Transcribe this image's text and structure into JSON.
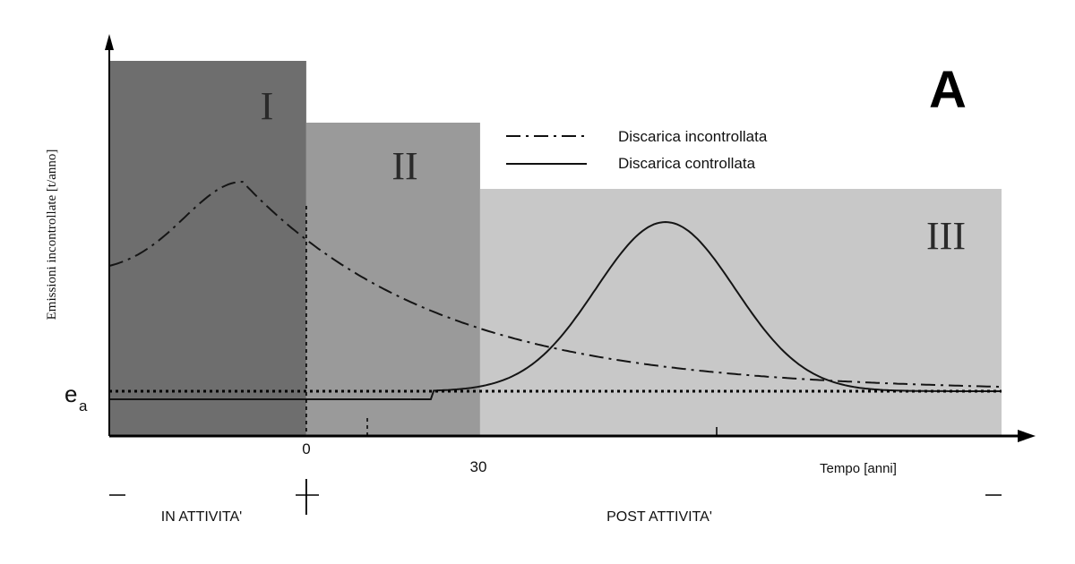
{
  "chart_data": {
    "type": "line",
    "panel_letter": "A",
    "ylabel": "Emissioni incontrollate [t/anno]",
    "xlabel": "Tempo [anni]",
    "x_ticks": [
      "0",
      "30"
    ],
    "x_range": [
      -34,
      120
    ],
    "threshold_label": "e",
    "threshold_subscript": "a",
    "regions": [
      {
        "label": "I",
        "x_start": -34,
        "x_end": 0,
        "color": "#6e6e6e"
      },
      {
        "label": "II",
        "x_start": 0,
        "x_end": 30,
        "color": "#9a9a9a"
      },
      {
        "label": "III",
        "x_start": 30,
        "x_end": 120,
        "color": "#c8c8c8"
      }
    ],
    "periods": [
      {
        "label": "IN ATTIVITA'"
      },
      {
        "label": "POST ATTIVITA'"
      }
    ],
    "legend": [
      {
        "label": "Discarica incontrollata",
        "style": "dash-dot"
      },
      {
        "label": "Discarica controllata",
        "style": "solid"
      }
    ],
    "series": [
      {
        "name": "Discarica incontrollata",
        "style": "dash-dot"
      },
      {
        "name": "Discarica controllata",
        "style": "solid"
      }
    ]
  }
}
